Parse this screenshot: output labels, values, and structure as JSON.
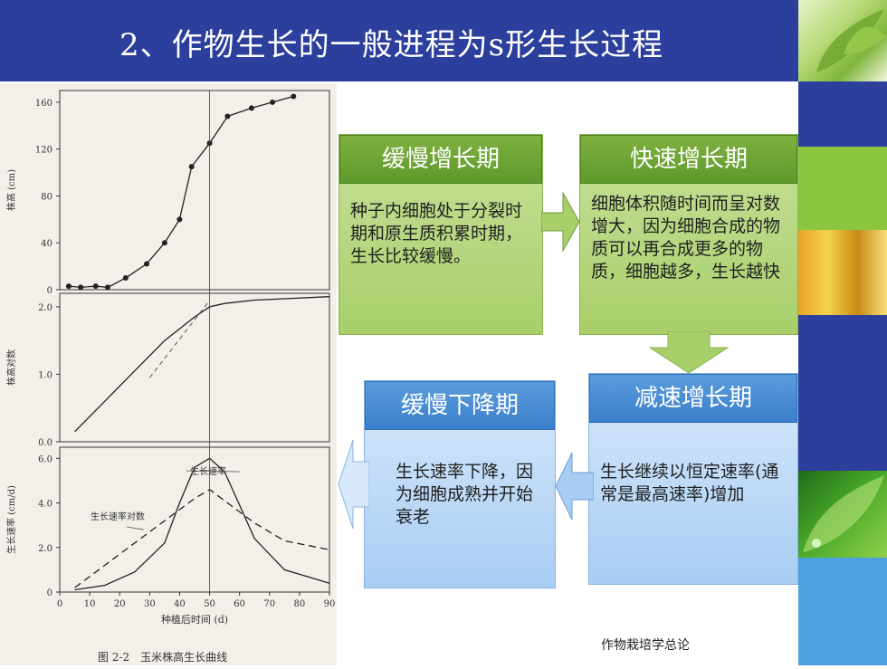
{
  "slide": {
    "title": "2、作物生长的一般进程为s形生长过程",
    "footer": "作物栽培学总论"
  },
  "phases": {
    "slow_growth": {
      "title": "缓慢增长期",
      "text": "种子内细胞处于分裂时期和原生质积累时期，生长比较缓慢。"
    },
    "fast_growth": {
      "title": "快速增长期",
      "text": "细胞体积随时间而呈对数增大，因为细胞合成的物质可以再合成更多的物质，细胞越多，生长越快"
    },
    "decel_growth": {
      "title": "减速增长期",
      "text": "生长继续以恒定速率(通常是最高速率)增加"
    },
    "slow_decline": {
      "title": "缓慢下降期",
      "text": "生长速率下降，因为细胞成熟并开始衰老"
    }
  },
  "colors": {
    "title_bar": "#2c3f9c",
    "phase_green": "#7fb040",
    "phase_blue": "#3b7fcc"
  },
  "chart_data": {
    "type": "line",
    "caption": "图 2-2　玉米株高生长曲线",
    "xlabel": "种植后时间 (d)",
    "x_ticks": [
      "0",
      "10",
      "20",
      "30",
      "40",
      "50",
      "60",
      "70",
      "80",
      "90"
    ],
    "xlim": [
      0,
      90
    ],
    "panels": [
      {
        "ylabel": "株高 (cm)",
        "y_ticks": [
          "0",
          "40",
          "80",
          "120",
          "160"
        ],
        "ylim": [
          0,
          170
        ],
        "series": [
          {
            "x": [
              3,
              7,
              12,
              16,
              22,
              29,
              35,
              40,
              44,
              50,
              56,
              64,
              71,
              78
            ],
            "y": [
              3,
              2,
              3,
              2,
              10,
              22,
              40,
              60,
              105,
              125,
              148,
              155,
              160,
              165
            ]
          }
        ]
      },
      {
        "ylabel": "株高对数",
        "y_ticks": [
          "0.0",
          "1.0",
          "2.0"
        ],
        "ylim": [
          0,
          2.2
        ],
        "series": [
          {
            "x": [
              5,
              15,
              25,
              35,
              45,
              50,
              55,
              65,
              75,
              90
            ],
            "y": [
              0.15,
              0.6,
              1.05,
              1.5,
              1.85,
              2.0,
              2.05,
              2.1,
              2.12,
              2.15
            ]
          }
        ]
      },
      {
        "ylabel": "生长速率 (cm/d)",
        "y_ticks": [
          "0",
          "2.0",
          "4.0",
          "6.0"
        ],
        "ylim": [
          0,
          6.5
        ],
        "series": [
          {
            "name": "生长速率",
            "x": [
              5,
              15,
              25,
              35,
              40,
              45,
              50,
              55,
              60,
              65,
              75,
              90
            ],
            "y": [
              0.1,
              0.3,
              0.9,
              2.2,
              4.0,
              5.6,
              6.0,
              5.4,
              3.9,
              2.4,
              1.0,
              0.4
            ]
          },
          {
            "name": "生长速率对数",
            "x": [
              5,
              15,
              25,
              35,
              45,
              50,
              55,
              65,
              75,
              90
            ],
            "y": [
              0.2,
              1.2,
              2.2,
              3.2,
              4.2,
              4.6,
              4.1,
              3.1,
              2.3,
              1.9
            ]
          }
        ]
      }
    ]
  }
}
